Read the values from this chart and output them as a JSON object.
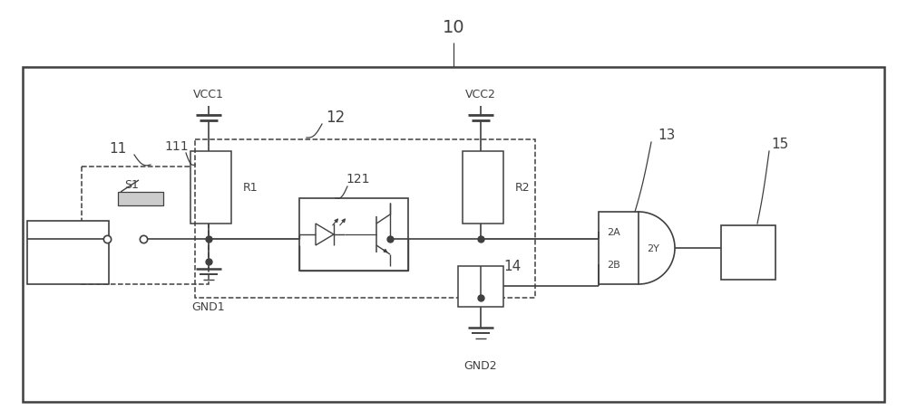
{
  "bg": "#ffffff",
  "lc": "#404040",
  "fig_w": 10.0,
  "fig_h": 4.64,
  "dpi": 100,
  "labels": {
    "10": "10",
    "11": "11",
    "111": "111",
    "12": "12",
    "121": "121",
    "13": "13",
    "14": "14",
    "15": "15",
    "VCC1": "VCC1",
    "VCC2": "VCC2",
    "GND1": "GND1",
    "GND2": "GND2",
    "R1": "R1",
    "R2": "R2",
    "S1": "S1",
    "2A": "2A",
    "2B": "2B",
    "2Y": "2Y"
  }
}
